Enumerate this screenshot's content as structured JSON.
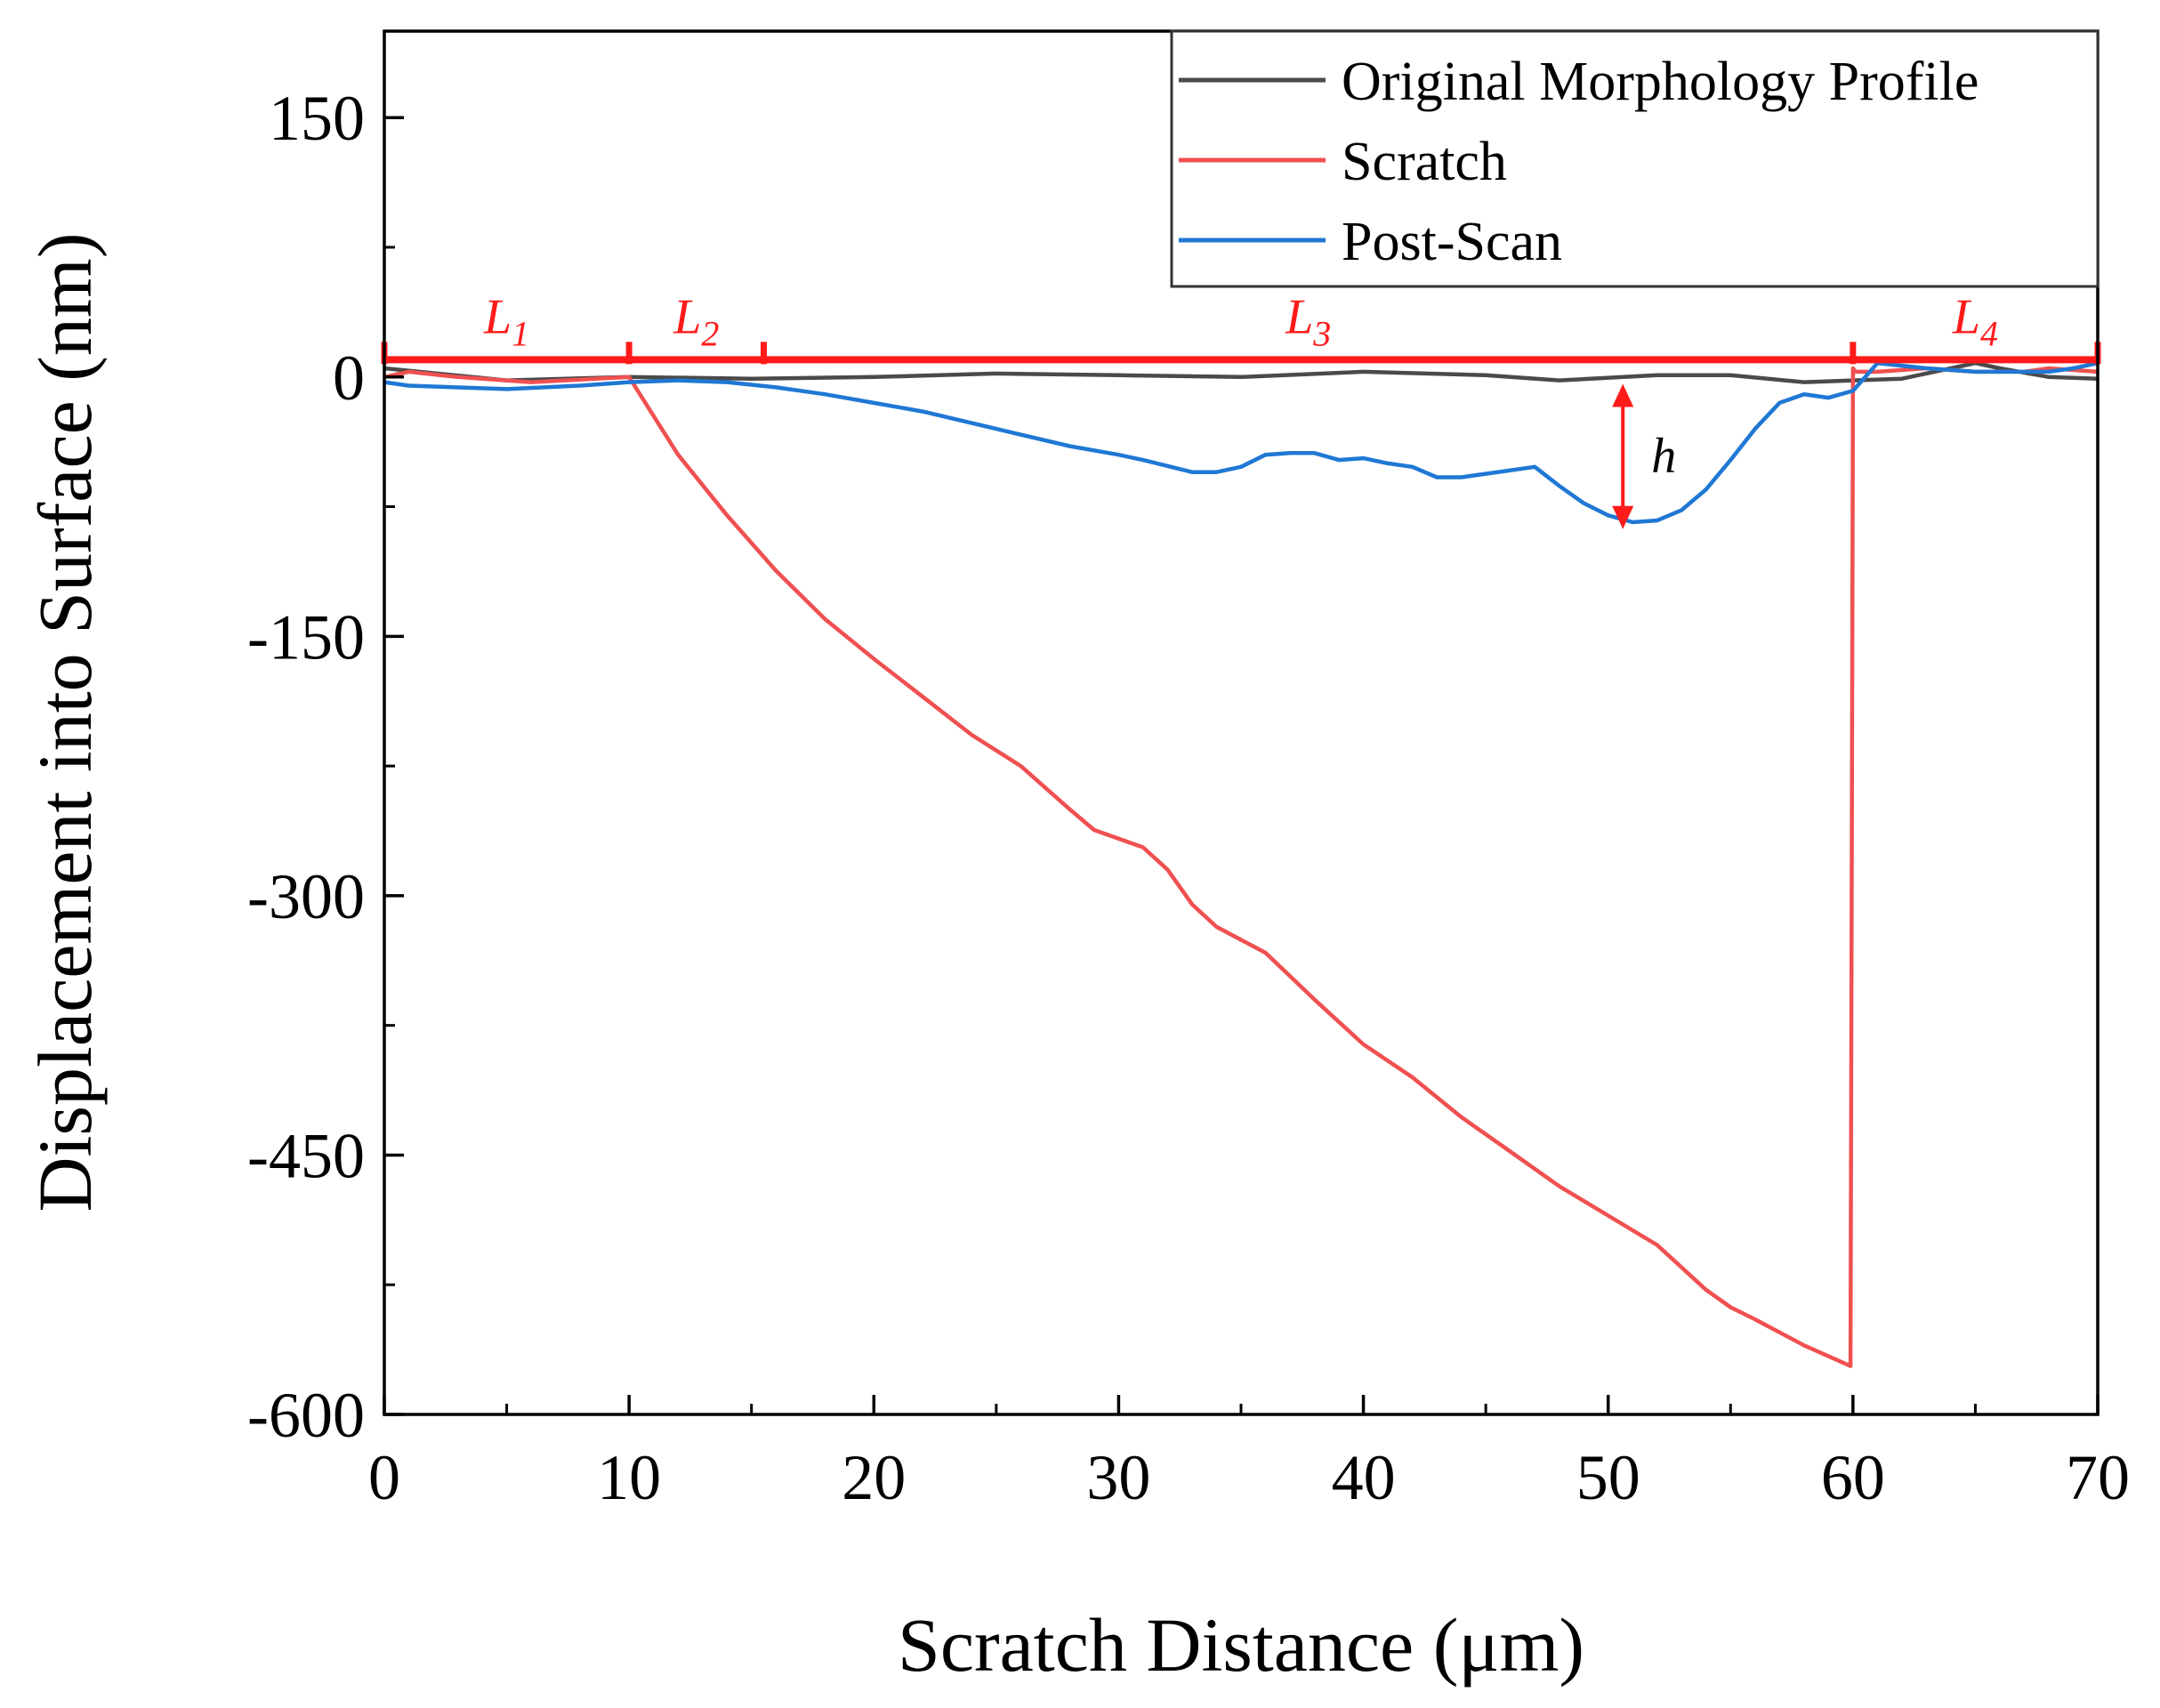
{
  "chart_data": {
    "type": "line",
    "title": "",
    "xlabel": "Scratch Distance (μm)",
    "ylabel": "Displacement into Surface (nm)",
    "xlim": [
      0,
      70
    ],
    "ylim": [
      -600,
      200
    ],
    "xticks": [
      0,
      10,
      20,
      30,
      40,
      50,
      60,
      70
    ],
    "xtick_labels": [
      "0",
      "10",
      "20",
      "30",
      "40",
      "50",
      "60",
      "70"
    ],
    "yticks": [
      150,
      0,
      -150,
      -300,
      -450,
      -600
    ],
    "ytick_labels": [
      "150",
      "0",
      "-150",
      "-300",
      "-450",
      "-600"
    ],
    "grid": false,
    "legend": "top-right",
    "series": [
      {
        "name": "Original Morphology Profile",
        "color": "#4a4a4a",
        "x": [
          0,
          5,
          10,
          15,
          20,
          25,
          30,
          35,
          40,
          45,
          48,
          52,
          55,
          58,
          60,
          62,
          64,
          65,
          66,
          68,
          70
        ],
        "y": [
          5,
          -2,
          0,
          -1,
          0,
          2,
          1,
          0,
          3,
          1,
          -2,
          1,
          1,
          -3,
          -2,
          -1,
          5,
          8,
          5,
          0,
          -1
        ]
      },
      {
        "name": "Scratch",
        "color": "#f05050",
        "x": [
          0,
          1,
          3,
          6,
          10,
          12,
          14,
          16,
          18,
          20,
          22,
          24,
          26,
          28,
          29,
          31,
          32,
          33,
          34,
          36,
          38,
          40,
          42,
          44,
          46,
          48,
          50,
          52,
          54,
          55,
          56,
          58,
          59.9,
          60,
          60.1,
          61,
          63,
          65,
          67,
          68,
          70
        ],
        "y": [
          0,
          3,
          0,
          -3,
          0,
          -45,
          -80,
          -112,
          -140,
          -163,
          -185,
          -207,
          -225,
          -250,
          -262,
          -272,
          -285,
          -305,
          -318,
          -333,
          -360,
          -386,
          -405,
          -428,
          -448,
          -468,
          -485,
          -502,
          -528,
          -538,
          -545,
          -560,
          -572,
          5,
          3,
          3,
          5,
          3,
          3,
          5,
          3
        ]
      },
      {
        "name": "Post-Scan",
        "color": "#1f78d4",
        "x": [
          0,
          1,
          5,
          8,
          10,
          12,
          14,
          16,
          18,
          20,
          22,
          25,
          28,
          30,
          31,
          33,
          34,
          35,
          36,
          37,
          38,
          39,
          40,
          41,
          42,
          43,
          44,
          45,
          47,
          48,
          49,
          50,
          51,
          52,
          53,
          54,
          55,
          56,
          57,
          58,
          59,
          60,
          61,
          63,
          65,
          67,
          68,
          69,
          70
        ],
        "y": [
          -3,
          -5,
          -7,
          -5,
          -3,
          -2,
          -3,
          -6,
          -10,
          -15,
          -20,
          -30,
          -40,
          -45,
          -48,
          -55,
          -55,
          -52,
          -45,
          -44,
          -44,
          -48,
          -47,
          -50,
          -52,
          -58,
          -58,
          -56,
          -52,
          -63,
          -73,
          -80,
          -84,
          -83,
          -77,
          -65,
          -48,
          -30,
          -15,
          -10,
          -12,
          -8,
          8,
          5,
          3,
          3,
          3,
          5,
          8
        ]
      }
    ],
    "annotations": {
      "segments": [
        {
          "name": "L",
          "sub": "1",
          "from": 0,
          "to": 10
        },
        {
          "name": "L",
          "sub": "2",
          "from": 10,
          "to": 15.5
        },
        {
          "name": "L",
          "sub": "3",
          "from": 15.5,
          "to": 60
        },
        {
          "name": "L",
          "sub": "4",
          "from": 60,
          "to": 70
        }
      ],
      "segment_bar_y": 10,
      "segment_color": "#ff1a1a",
      "h_label": "h",
      "h_x": 50.6,
      "h_from": -4,
      "h_to": -88
    }
  }
}
